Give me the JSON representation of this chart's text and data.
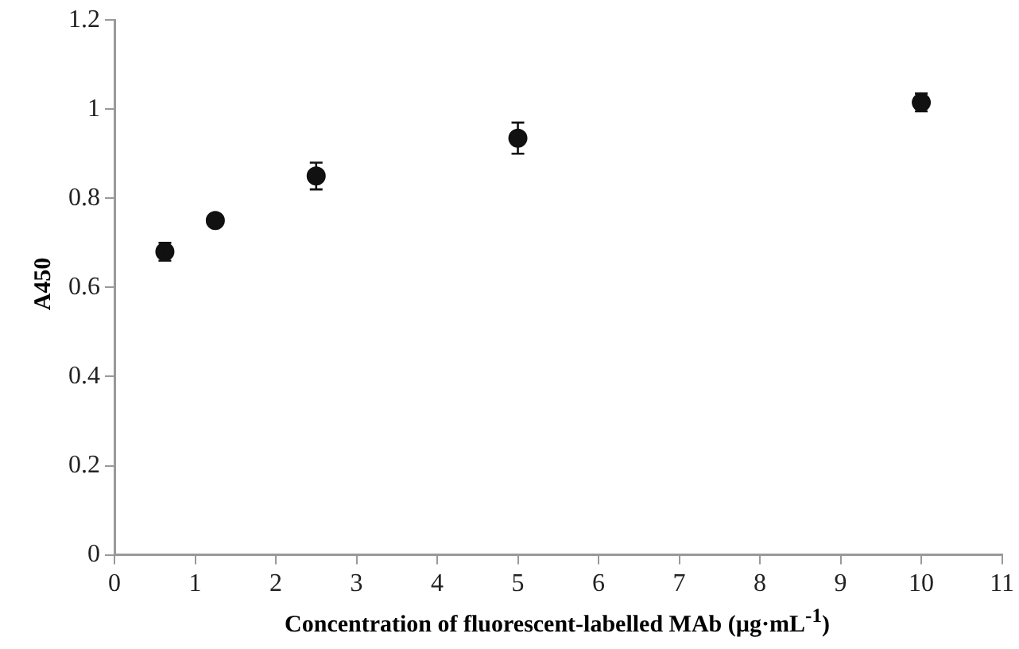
{
  "chart_data": {
    "type": "scatter",
    "xlabel": "Concentration of fluorescent-labelled MAb (µg·mL$^{-1}$)",
    "ylabel": "A450",
    "x": [
      0.625,
      1.25,
      2.5,
      5,
      10
    ],
    "series": [
      {
        "color": "#111111",
        "values": [
          0.68,
          0.75,
          0.85,
          0.935,
          1.015
        ],
        "errors": [
          0.02,
          null,
          0.03,
          0.035,
          0.02
        ]
      }
    ],
    "xlim": [
      0,
      11
    ],
    "xticks": [
      0,
      1,
      2,
      3,
      4,
      5,
      6,
      7,
      8,
      9,
      10,
      11
    ],
    "ylim": [
      0,
      1.2
    ],
    "yticks": [
      0,
      0.2,
      0.4,
      0.6,
      0.8,
      1,
      1.2
    ],
    "grid": false,
    "legend": false,
    "marker": "circle"
  }
}
